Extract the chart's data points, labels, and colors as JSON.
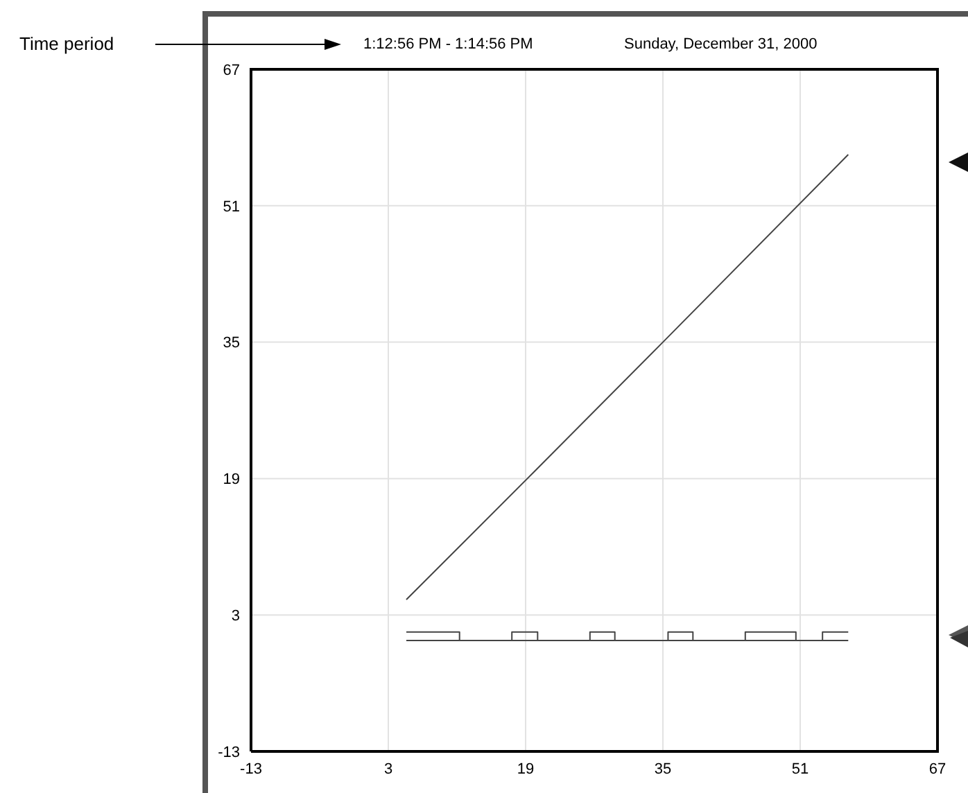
{
  "chart_data": {
    "type": "line",
    "title": "1:12:56 PM - 1:14:56 PM",
    "subtitle": "Sunday, December 31, 2000",
    "annotations": [
      "Time period"
    ],
    "series": [
      {
        "color": "#444444",
        "x": [
          5.1,
          20,
          35,
          56.6
        ],
        "values": [
          4.8,
          19.8,
          35,
          57
        ]
      },
      {
        "type": "step",
        "color": "#444444",
        "x": [
          5.1,
          11.3,
          17.4,
          20.4,
          26.5,
          29.4,
          35.6,
          38.5,
          44.6,
          50.5,
          53.6,
          56.6
        ],
        "values": [
          1,
          0,
          1,
          0,
          1,
          0,
          1,
          0,
          1,
          0,
          1,
          1
        ]
      },
      {
        "color": "#444444",
        "x": [
          5.1,
          56.6
        ],
        "values": [
          0,
          0
        ]
      }
    ],
    "xlim": [
      -13,
      67
    ],
    "xticks": [
      -13,
      3,
      19,
      35,
      51,
      67
    ],
    "ylim": [
      -13,
      67
    ],
    "yticks": [
      -13,
      3,
      19,
      35,
      51,
      67
    ],
    "grid": true,
    "legend": false,
    "marker": "none",
    "line_style": "solid"
  }
}
